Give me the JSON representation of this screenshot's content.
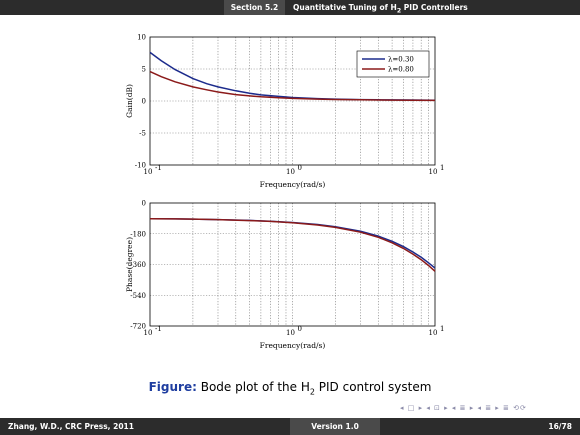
{
  "header": {
    "section": "Section 5.2",
    "title_pre": "Quantitative Tuning of H",
    "title_sub": "2",
    "title_post": " PID Controllers"
  },
  "chart_data": [
    {
      "type": "line",
      "xlabel": "Frequency(rad/s)",
      "ylabel": "Gain(dB)",
      "xscale": "log",
      "xlim": [
        0.1,
        10
      ],
      "ylim": [
        -10,
        10
      ],
      "xtick_labels": [
        "10",
        "10",
        "10"
      ],
      "xtick_exponents": [
        "-1",
        "0",
        "1"
      ],
      "ytick_labels": [
        "10",
        "5",
        "0",
        "-5",
        "-10"
      ],
      "grid": true,
      "legend_position": "top-right",
      "colors": [
        "#1c2b8c",
        "#8b1a1a"
      ],
      "x": [
        0.1,
        0.12,
        0.15,
        0.2,
        0.25,
        0.3,
        0.4,
        0.5,
        0.6,
        0.8,
        1.0,
        1.5,
        2.0,
        3.0,
        4.0,
        5.0,
        7.0,
        10.0
      ],
      "series": [
        {
          "name": "λ=0.30",
          "values": [
            7.6,
            6.3,
            4.9,
            3.5,
            2.7,
            2.2,
            1.6,
            1.2,
            0.95,
            0.72,
            0.55,
            0.38,
            0.3,
            0.22,
            0.19,
            0.17,
            0.15,
            0.13
          ]
        },
        {
          "name": "λ=0.80",
          "values": [
            4.6,
            3.8,
            3.0,
            2.2,
            1.75,
            1.4,
            1.0,
            0.8,
            0.65,
            0.5,
            0.4,
            0.3,
            0.24,
            0.18,
            0.16,
            0.14,
            0.12,
            0.1
          ]
        }
      ]
    },
    {
      "type": "line",
      "xlabel": "Frequency(rad/s)",
      "ylabel": "Phase(degree)",
      "xscale": "log",
      "xlim": [
        0.1,
        10
      ],
      "ylim": [
        -720,
        0
      ],
      "xtick_labels": [
        "10",
        "10",
        "10"
      ],
      "xtick_exponents": [
        "-1",
        "0",
        "1"
      ],
      "ytick_labels": [
        "0",
        "-180",
        "-360",
        "-540",
        "-720"
      ],
      "grid": true,
      "colors": [
        "#1c2b8c",
        "#8b1a1a"
      ],
      "x": [
        0.1,
        0.15,
        0.2,
        0.3,
        0.5,
        0.7,
        1.0,
        1.5,
        2.0,
        3.0,
        4.0,
        5.0,
        6.0,
        7.0,
        8.0,
        9.0,
        10.0
      ],
      "series": [
        {
          "values": [
            -92,
            -93,
            -94,
            -97,
            -102,
            -107,
            -114,
            -126,
            -139,
            -165,
            -194,
            -224,
            -255,
            -287,
            -318,
            -350,
            -381
          ]
        },
        {
          "values": [
            -92,
            -93,
            -94,
            -97,
            -103,
            -108,
            -116,
            -129,
            -143,
            -171,
            -201,
            -233,
            -266,
            -299,
            -332,
            -366,
            -400
          ]
        }
      ]
    }
  ],
  "caption": {
    "label": "Figure:",
    "text_pre": " Bode plot of the H",
    "text_sub": "2",
    "text_post": " PID control system"
  },
  "nav_symbols": "◂ □ ▸ ◂ ⊡ ▸ ◂ ≣ ▸ ◂ ≣ ▸  ≣  ⟲⟳",
  "footer": {
    "author": "Zhang, W.D., CRC Press, 2011",
    "version": "Version 1.0",
    "page": "16/78"
  }
}
